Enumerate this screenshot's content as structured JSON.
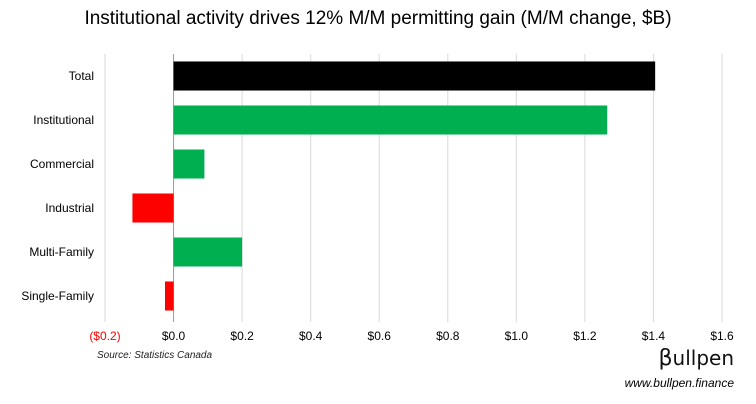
{
  "chart_data": {
    "type": "bar",
    "orientation": "horizontal",
    "title": "Institutional activity drives 12% M/M permitting gain (M/M change, $B)",
    "categories": [
      "Total",
      "Institutional",
      "Commercial",
      "Industrial",
      "Multi-Family",
      "Single-Family"
    ],
    "values": [
      1.405,
      1.265,
      0.09,
      -0.12,
      0.2,
      -0.025
    ],
    "colors": [
      "#000000",
      "#00b050",
      "#00b050",
      "#ff0000",
      "#00b050",
      "#ff0000"
    ],
    "xlim": [
      -0.2,
      1.6
    ],
    "xticks": [
      -0.2,
      0.0,
      0.2,
      0.4,
      0.6,
      0.8,
      1.0,
      1.2,
      1.4,
      1.6
    ],
    "xtick_labels": [
      "($0.2)",
      "$0.0",
      "$0.2",
      "$0.4",
      "$0.6",
      "$0.8",
      "$1.0",
      "$1.2",
      "$1.4",
      "$1.6"
    ],
    "negative_tick_color": "#ff0000",
    "grid": true,
    "legend": "none"
  },
  "footer": {
    "source": "Source: Statistics Canada",
    "brand_beta": "β",
    "brand_rest": "ullpen",
    "url": "www.bullpen.finance"
  }
}
